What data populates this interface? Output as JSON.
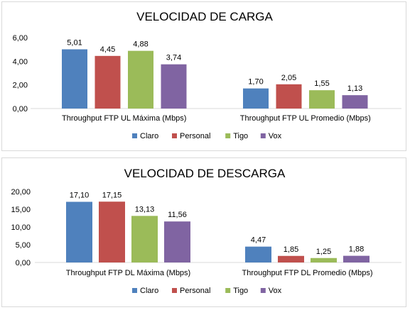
{
  "chart_data": [
    {
      "type": "bar",
      "title": "VELOCIDAD DE CARGA",
      "categories": [
        "Throughput FTP UL Máxima (Mbps)",
        "Throughput FTP UL Promedio (Mbps)"
      ],
      "series": [
        {
          "name": "Claro",
          "color": "#4f81bd",
          "values": [
            5.01,
            1.7
          ],
          "labels": [
            "5,01",
            "1,70"
          ]
        },
        {
          "name": "Personal",
          "color": "#c0504d",
          "values": [
            4.45,
            2.05
          ],
          "labels": [
            "4,45",
            "2,05"
          ]
        },
        {
          "name": "Tigo",
          "color": "#9bbb59",
          "values": [
            4.88,
            1.55
          ],
          "labels": [
            "4,88",
            "1,55"
          ]
        },
        {
          "name": "Vox",
          "color": "#8064a2",
          "values": [
            3.74,
            1.13
          ],
          "labels": [
            "3,74",
            "1,13"
          ]
        }
      ],
      "ylim": [
        0,
        6
      ],
      "yticks": [
        0,
        2,
        4,
        6
      ],
      "ytick_labels": [
        "0,00",
        "2,00",
        "4,00",
        "6,00"
      ],
      "legend": "bottom",
      "grid": false
    },
    {
      "type": "bar",
      "title": "VELOCIDAD DE DESCARGA",
      "categories": [
        "Throughput FTP DL Máxima (Mbps)",
        "Throughput FTP DL Promedio (Mbps)"
      ],
      "series": [
        {
          "name": "Claro",
          "color": "#4f81bd",
          "values": [
            17.1,
            4.47
          ],
          "labels": [
            "17,10",
            "4,47"
          ]
        },
        {
          "name": "Personal",
          "color": "#c0504d",
          "values": [
            17.15,
            1.85
          ],
          "labels": [
            "17,15",
            "1,85"
          ]
        },
        {
          "name": "Tigo",
          "color": "#9bbb59",
          "values": [
            13.13,
            1.25
          ],
          "labels": [
            "13,13",
            "1,25"
          ]
        },
        {
          "name": "Vox",
          "color": "#8064a2",
          "values": [
            11.56,
            1.88
          ],
          "labels": [
            "11,56",
            "1,88"
          ]
        }
      ],
      "ylim": [
        0,
        20
      ],
      "yticks": [
        0,
        5,
        10,
        15,
        20
      ],
      "ytick_labels": [
        "0,00",
        "5,00",
        "10,00",
        "15,00",
        "20,00"
      ],
      "legend": "bottom",
      "grid": false
    }
  ]
}
